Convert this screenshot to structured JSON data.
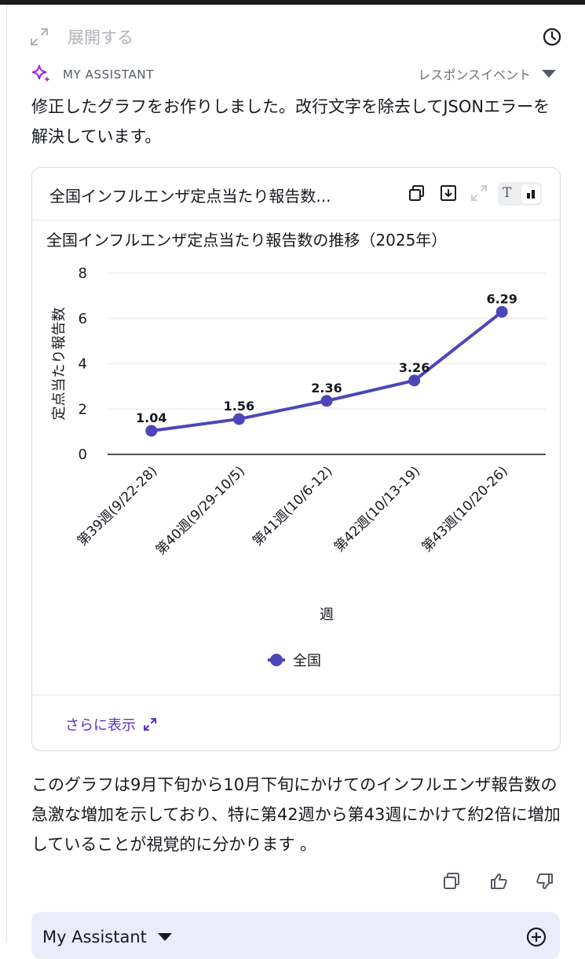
{
  "header": {
    "expand_label": "展開する"
  },
  "assistant": {
    "name": "MY ASSISTANT",
    "response_event": "レスポンスイベント"
  },
  "message": {
    "intro": "修正したグラフをお作りしました。改行文字を除去してJSONエラーを解決しています。",
    "summary": "このグラフは9月下旬から10月下旬にかけてのインフルエンザ報告数の急激な増加を示しており、特に第42週から第43週にかけて約2倍に増加していることが視覚的に分かります 。"
  },
  "card": {
    "title": "全国インフルエンザ定点当たり報告数...",
    "more_label": "さらに表示"
  },
  "chart_data": {
    "type": "line",
    "title": "全国インフルエンザ定点当たり報告数の推移（2025年）",
    "xlabel": "週",
    "ylabel": "定点当たり報告数",
    "categories": [
      "第39週(9/22-28)",
      "第40週(9/29-10/5)",
      "第41週(10/6-12)",
      "第42週(10/13-19)",
      "第43週(10/20-26)"
    ],
    "series": [
      {
        "name": "全国",
        "values": [
          1.04,
          1.56,
          2.36,
          3.26,
          6.29
        ]
      }
    ],
    "ylim": [
      0,
      8
    ],
    "yticks": [
      0,
      2,
      4,
      6,
      8
    ],
    "grid": true,
    "legend_position": "bottom",
    "data_labels": true,
    "color": "#4b46b8"
  },
  "input": {
    "label": "My Assistant"
  }
}
